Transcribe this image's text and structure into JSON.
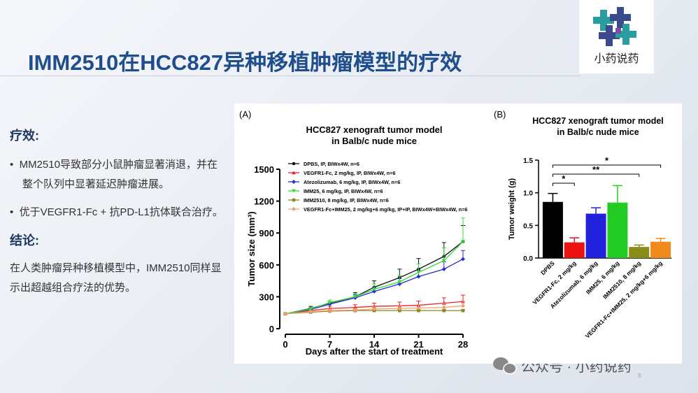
{
  "slide": {
    "title": "IMM2510在HCC827异种移植肿瘤模型的疗效",
    "logo_text": "小药说药",
    "heading_1": "疗效:",
    "bullets": [
      "MM2510导致部分小鼠肿瘤显著消退，并在整个队列中显著延迟肿瘤进展。",
      "优于VEGFR1-Fc + 抗PD-L1抗体联合治疗。"
    ],
    "heading_2": "结论:",
    "conclusion": "在人类肿瘤异种移植模型中，IMM2510同样显示出超越组合疗法的优势。",
    "watermark": "公众号 · 小药说药",
    "page_number": "8"
  },
  "chart_data": [
    {
      "type": "line",
      "panel": "(A)",
      "title": [
        "HCC827 xenograft tumor model",
        "in Balb/c nude mice"
      ],
      "x_label": "Days after the start of treatment",
      "y_label": "Tumor size (mm³)",
      "x": [
        0,
        4,
        7,
        11,
        14,
        18,
        21,
        25,
        28
      ],
      "xlim": [
        0,
        28
      ],
      "xticks": [
        0,
        7,
        14,
        21,
        28
      ],
      "ylim": [
        0,
        1500
      ],
      "yticks": [
        0,
        300,
        600,
        900,
        1200,
        1500
      ],
      "series": [
        {
          "name": "DPBS, IP, BIWx4W, n=6",
          "color": "#111111",
          "marker": "circle",
          "values": [
            140,
            190,
            240,
            300,
            390,
            480,
            560,
            680,
            820
          ],
          "errors": [
            0,
            20,
            30,
            40,
            60,
            80,
            100,
            130,
            150
          ]
        },
        {
          "name": "VEGFR1-Fc, 2 mg/kg,  IP, BIWx4W, n=6",
          "color": "#e8202a",
          "marker": "triangle-up",
          "values": [
            140,
            170,
            190,
            200,
            210,
            215,
            220,
            240,
            255
          ],
          "errors": [
            0,
            15,
            20,
            25,
            30,
            35,
            40,
            50,
            60
          ]
        },
        {
          "name": "Atezolizumab, 6 mg/kg,  IP, BIWx4W, n=6",
          "color": "#2a2ad8",
          "marker": "diamond",
          "values": [
            140,
            180,
            230,
            290,
            350,
            420,
            490,
            560,
            655
          ],
          "errors": [
            0,
            15,
            25,
            30,
            40,
            50,
            60,
            70,
            80
          ]
        },
        {
          "name": "IMM25, 6 mg/kg,  IP, BIWx4W, n=6",
          "color": "#33dd33",
          "marker": "triangle-down",
          "values": [
            140,
            185,
            245,
            300,
            370,
            440,
            530,
            640,
            820
          ],
          "errors": [
            0,
            15,
            25,
            30,
            50,
            60,
            80,
            120,
            220
          ]
        },
        {
          "name": "IMM2510, 8 mg/kg,  IP, BIWx4W, n=6",
          "color": "#8a8a1a",
          "marker": "square",
          "values": [
            140,
            155,
            165,
            170,
            170,
            170,
            170,
            170,
            170
          ],
          "errors": [
            0,
            10,
            10,
            10,
            10,
            10,
            10,
            10,
            10
          ]
        },
        {
          "name": "VEGFR1-Fc+IMM25, 2 mg/kg+6 mg/kg,  IP+IP, BIWx4W+BIWx4W, n=6",
          "color": "#f0a070",
          "marker": "diamond",
          "values": [
            140,
            160,
            170,
            175,
            185,
            190,
            195,
            200,
            215
          ],
          "errors": [
            0,
            10,
            15,
            15,
            20,
            25,
            30,
            35,
            45
          ]
        }
      ]
    },
    {
      "type": "bar",
      "panel": "(B)",
      "title": [
        "HCC827 xenograft tumor model",
        "in Balb/c nude mice"
      ],
      "y_label": "Tumor weight (g)",
      "categories": [
        "DPBS",
        "VEGFR1-Fc, 2 mg/kg",
        "Atezolizumab, 6 mg/kg",
        "IMM25, 6 mg/kg",
        "IMM2510, 8 mg/kg",
        "VEGFR1-Fc+IMM25, 2 mg/kg+6 mg/kg"
      ],
      "values": [
        0.86,
        0.24,
        0.68,
        0.85,
        0.17,
        0.25
      ],
      "errors": [
        0.13,
        0.07,
        0.09,
        0.26,
        0.03,
        0.05
      ],
      "colors": [
        "#000000",
        "#ee1111",
        "#2222dd",
        "#22cc22",
        "#8b8b1a",
        "#f08a1a"
      ],
      "ylim": [
        0,
        1.5
      ],
      "yticks": [
        {
          "value": 0,
          "label": "0.0"
        },
        {
          "value": 0.5,
          "label": "0.5"
        },
        {
          "value": 1,
          "label": "1.0"
        },
        {
          "value": 1.5,
          "label": "1.5"
        }
      ],
      "significance": [
        {
          "label": "*",
          "between": [
            0,
            1
          ]
        },
        {
          "label": "**",
          "between": [
            0,
            4
          ]
        },
        {
          "label": "*",
          "between": [
            0,
            5
          ]
        }
      ]
    }
  ]
}
